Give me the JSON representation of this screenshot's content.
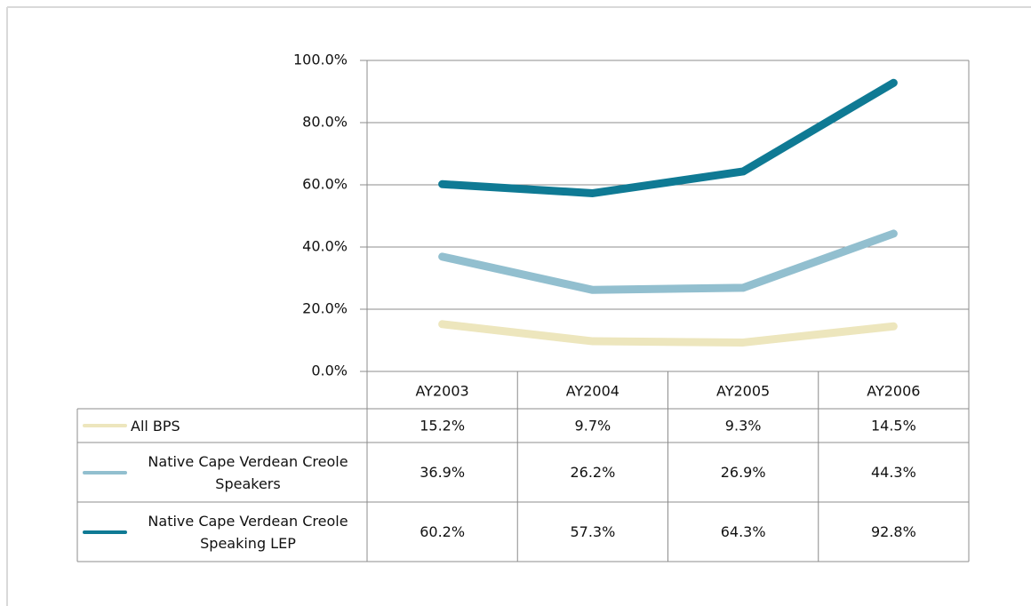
{
  "chart_data": {
    "type": "line",
    "categories": [
      "AY2003",
      "AY2004",
      "AY2005",
      "AY2006"
    ],
    "series": [
      {
        "name": "All BPS",
        "color": "#ede6bd",
        "values": [
          15.2,
          9.7,
          9.3,
          14.5
        ],
        "value_labels": [
          "15.2%",
          "9.7%",
          "9.3%",
          "14.5%"
        ]
      },
      {
        "name": "Native Cape Verdean Creole Speakers",
        "color": "#92bfcf",
        "values": [
          36.9,
          26.2,
          26.9,
          44.3
        ],
        "value_labels": [
          "36.9%",
          "26.2%",
          "26.9%",
          "44.3%"
        ]
      },
      {
        "name": "Native Cape Verdean Creole Speaking LEP",
        "color": "#0f7a94",
        "values": [
          60.2,
          57.3,
          64.3,
          92.8
        ],
        "value_labels": [
          "60.2%",
          "57.3%",
          "64.3%",
          "92.8%"
        ]
      }
    ],
    "ylim": [
      0,
      100
    ],
    "yticks": [
      {
        "value": 0,
        "label": "0.0%"
      },
      {
        "value": 20,
        "label": "20.0%"
      },
      {
        "value": 40,
        "label": "40.0%"
      },
      {
        "value": 60,
        "label": "60.0%"
      },
      {
        "value": 80,
        "label": "80.0%"
      },
      {
        "value": 100,
        "label": "100.0%"
      }
    ],
    "grid": true,
    "data_table": true
  }
}
